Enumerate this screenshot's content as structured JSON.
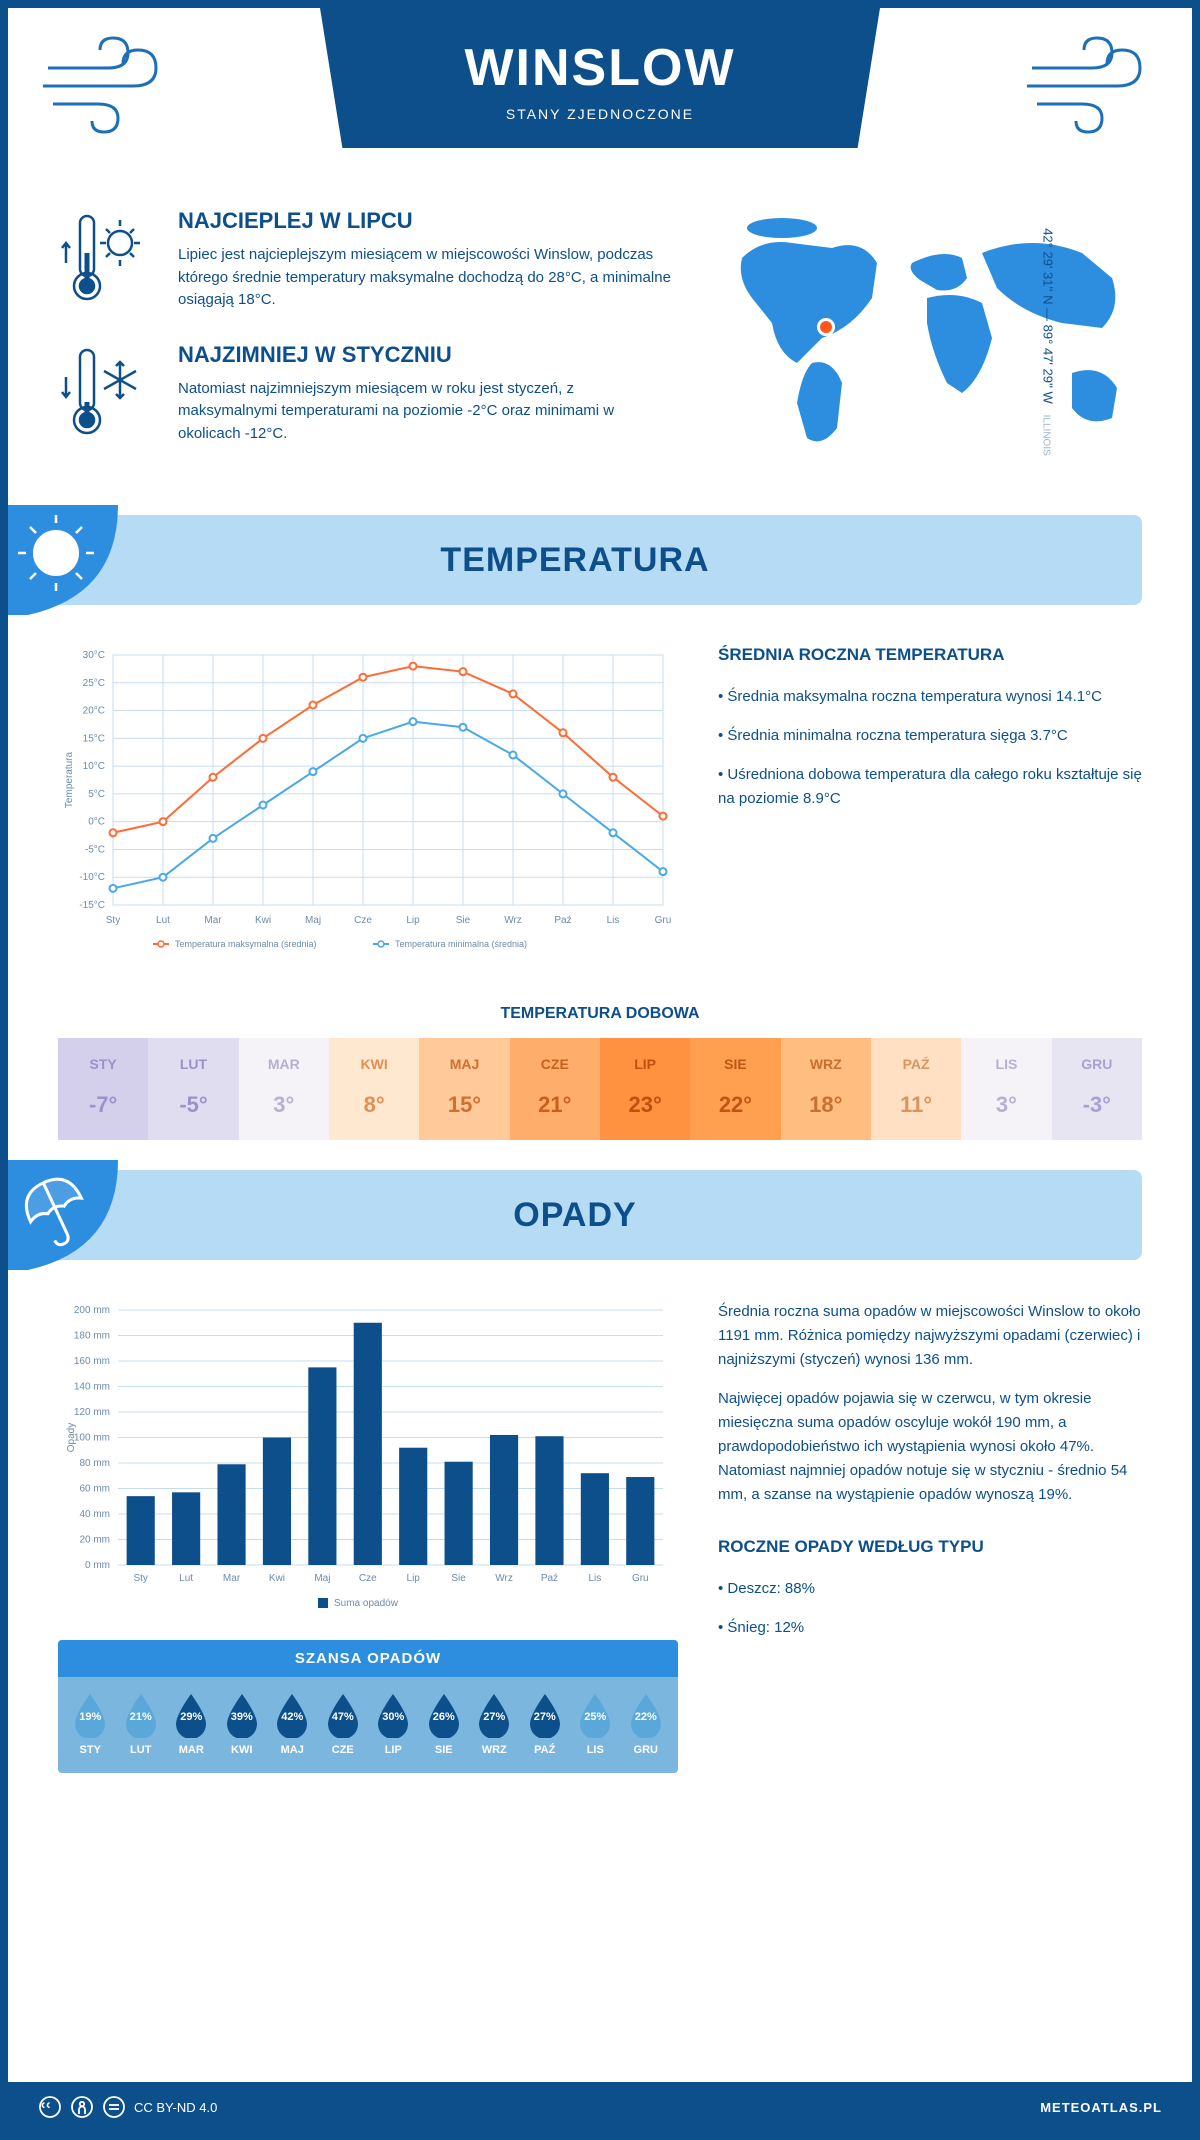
{
  "header": {
    "city": "WINSLOW",
    "country": "STANY ZJEDNOCZONE"
  },
  "intro": {
    "hot_title": "NAJCIEPLEJ W LIPCU",
    "hot_text": "Lipiec jest najcieplejszym miesiącem w miejscowości Winslow, podczas którego średnie temperatury maksymalne dochodzą do 28°C, a minimalne osiągają 18°C.",
    "cold_title": "NAJZIMNIEJ W STYCZNIU",
    "cold_text": "Natomiast najzimniejszym miesiącem w roku jest styczeń, z maksymalnymi temperaturami na poziomie -2°C oraz minimami w okolicach -12°C.",
    "coords": "42° 29' 31'' N — 89° 47' 29'' W",
    "state": "ILLINOIS"
  },
  "temperature": {
    "section_title": "TEMPERATURA",
    "side_title": "ŚREDNIA ROCZNA TEMPERATURA",
    "bullets": [
      "• Średnia maksymalna roczna temperatura wynosi 14.1°C",
      "• Średnia minimalna roczna temperatura sięga 3.7°C",
      "• Uśredniona dobowa temperatura dla całego roku kształtuje się na poziomie 8.9°C"
    ],
    "chart": {
      "type": "line",
      "months": [
        "Sty",
        "Lut",
        "Mar",
        "Kwi",
        "Maj",
        "Cze",
        "Lip",
        "Sie",
        "Wrz",
        "Paź",
        "Lis",
        "Gru"
      ],
      "max_series": [
        -2,
        0,
        8,
        15,
        21,
        26,
        28,
        27,
        23,
        16,
        8,
        1
      ],
      "min_series": [
        -12,
        -10,
        -3,
        3,
        9,
        15,
        18,
        17,
        12,
        5,
        -2,
        -9
      ],
      "max_color": "#ff6b35",
      "min_color": "#4aa8e8",
      "grid_color": "#c8dcf0",
      "ylim": [
        -15,
        30
      ],
      "ytick_step": 5,
      "ylabel": "Temperatura",
      "legend_max": "Temperatura maksymalna (średnia)",
      "legend_min": "Temperatura minimalna (średnia)",
      "font_size": 10
    },
    "daily_title": "TEMPERATURA DOBOWA",
    "daily_months": [
      "STY",
      "LUT",
      "MAR",
      "KWI",
      "MAJ",
      "CZE",
      "LIP",
      "SIE",
      "WRZ",
      "PAŹ",
      "LIS",
      "GRU"
    ],
    "daily_values": [
      "-7°",
      "-5°",
      "3°",
      "8°",
      "15°",
      "21°",
      "23°",
      "22°",
      "18°",
      "11°",
      "3°",
      "-3°"
    ],
    "daily_bg_colors": [
      "#d4d0ec",
      "#e0ddf0",
      "#f5f3f8",
      "#ffe8d0",
      "#ffc999",
      "#ffad6b",
      "#ff9240",
      "#ffa050",
      "#ffbd80",
      "#ffe0c2",
      "#f5f3f8",
      "#e8e5f2"
    ],
    "daily_text_colors": [
      "#9a92c8",
      "#9a92c8",
      "#b8b0d0",
      "#e09050",
      "#d07030",
      "#c86020",
      "#c05010",
      "#c05515",
      "#c87030",
      "#d89560",
      "#b8b0d0",
      "#a8a0d0"
    ]
  },
  "precip": {
    "section_title": "OPADY",
    "chart": {
      "type": "bar",
      "months": [
        "Sty",
        "Lut",
        "Mar",
        "Kwi",
        "Maj",
        "Cze",
        "Lip",
        "Sie",
        "Wrz",
        "Paź",
        "Lis",
        "Gru"
      ],
      "values": [
        54,
        57,
        79,
        100,
        155,
        190,
        92,
        81,
        102,
        101,
        72,
        69
      ],
      "bar_color": "#0d4f8b",
      "grid_color": "#c8dcf0",
      "ylim": [
        0,
        200
      ],
      "ytick_step": 20,
      "ylabel": "Opady",
      "legend": "Suma opadów",
      "font_size": 10
    },
    "side_text1": "Średnia roczna suma opadów w miejscowości Winslow to około 1191 mm. Różnica pomiędzy najwyższymi opadami (czerwiec) i najniższymi (styczeń) wynosi 136 mm.",
    "side_text2": "Najwięcej opadów pojawia się w czerwcu, w tym okresie miesięczna suma opadów oscyluje wokół 190 mm, a prawdopodobieństwo ich wystąpienia wynosi około 47%. Natomiast najmniej opadów notuje się w styczniu - średnio 54 mm, a szanse na wystąpienie opadów wynoszą 19%.",
    "chance_title": "SZANSA OPADÓW",
    "chance_months": [
      "STY",
      "LUT",
      "MAR",
      "KWI",
      "MAJ",
      "CZE",
      "LIP",
      "SIE",
      "WRZ",
      "PAŹ",
      "LIS",
      "GRU"
    ],
    "chance_values": [
      "19%",
      "21%",
      "29%",
      "39%",
      "42%",
      "47%",
      "30%",
      "26%",
      "27%",
      "27%",
      "25%",
      "22%"
    ],
    "chance_colors": [
      "#5aa8da",
      "#5aa8da",
      "#0d4f8b",
      "#0d4f8b",
      "#0d4f8b",
      "#0d4f8b",
      "#0d4f8b",
      "#0d4f8b",
      "#0d4f8b",
      "#0d4f8b",
      "#5aa8da",
      "#5aa8da"
    ],
    "type_title": "ROCZNE OPADY WEDŁUG TYPU",
    "type_rain": "• Deszcz: 88%",
    "type_snow": "• Śnieg: 12%"
  },
  "footer": {
    "license": "CC BY-ND 4.0",
    "brand": "METEOATLAS.PL"
  }
}
